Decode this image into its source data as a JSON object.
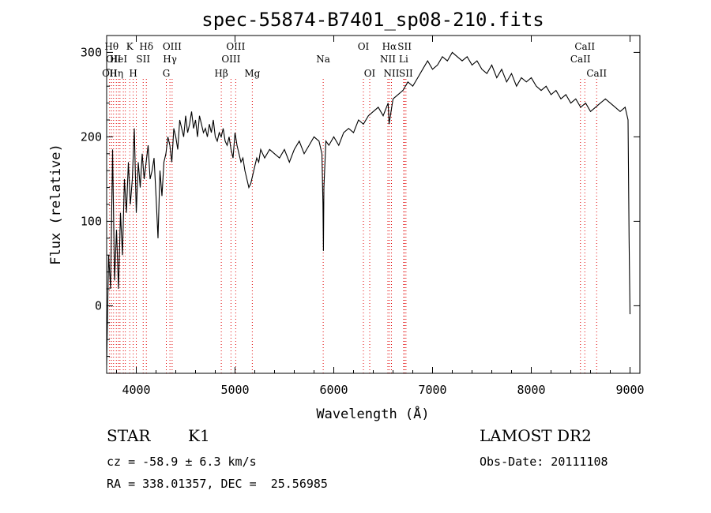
{
  "chart_data": {
    "type": "line",
    "title": "spec-55874-B7401_sp08-210.fits",
    "xlabel": "Wavelength (Å)",
    "ylabel": "Flux (relative)",
    "xlim": [
      3700,
      9100
    ],
    "ylim": [
      -80,
      320
    ],
    "xticks": [
      4000,
      5000,
      6000,
      7000,
      8000,
      9000
    ],
    "yticks": [
      0,
      100,
      200,
      300
    ],
    "grid": false,
    "line_color": "#000000",
    "marker_color": "#e00000",
    "series": [
      {
        "x": [
          3700,
          3720,
          3740,
          3760,
          3780,
          3800,
          3820,
          3840,
          3860,
          3880,
          3900,
          3920,
          3940,
          3960,
          3980,
          4000,
          4020,
          4040,
          4060,
          4080,
          4100,
          4120,
          4140,
          4160,
          4180,
          4200,
          4220,
          4240,
          4260,
          4280,
          4300,
          4320,
          4340,
          4360,
          4380,
          4400,
          4420,
          4440,
          4460,
          4480,
          4500,
          4520,
          4540,
          4560,
          4580,
          4600,
          4620,
          4640,
          4660,
          4680,
          4700,
          4720,
          4740,
          4760,
          4780,
          4800,
          4820,
          4840,
          4860,
          4880,
          4900,
          4920,
          4940,
          4960,
          4980,
          5000,
          5020,
          5040,
          5060,
          5080,
          5100,
          5120,
          5140,
          5160,
          5180,
          5200,
          5220,
          5240,
          5260,
          5280,
          5300,
          5350,
          5400,
          5450,
          5500,
          5550,
          5600,
          5650,
          5700,
          5750,
          5800,
          5850,
          5880,
          5890,
          5895,
          5900,
          5920,
          5950,
          6000,
          6050,
          6100,
          6150,
          6200,
          6250,
          6300,
          6350,
          6400,
          6450,
          6500,
          6550,
          6560,
          6600,
          6650,
          6700,
          6750,
          6800,
          6850,
          6900,
          6950,
          7000,
          7050,
          7100,
          7150,
          7200,
          7250,
          7300,
          7350,
          7400,
          7450,
          7500,
          7550,
          7600,
          7650,
          7700,
          7750,
          7800,
          7850,
          7900,
          7950,
          8000,
          8050,
          8100,
          8150,
          8200,
          8250,
          8300,
          8350,
          8400,
          8450,
          8500,
          8550,
          8600,
          8650,
          8700,
          8750,
          8800,
          8850,
          8900,
          8950,
          8980,
          8990,
          9000
        ],
        "y": [
          -70,
          60,
          20,
          185,
          30,
          90,
          20,
          110,
          60,
          150,
          110,
          170,
          120,
          150,
          210,
          110,
          170,
          140,
          180,
          150,
          170,
          190,
          150,
          160,
          175,
          130,
          80,
          160,
          130,
          170,
          180,
          200,
          190,
          170,
          210,
          200,
          185,
          220,
          210,
          200,
          225,
          205,
          215,
          230,
          210,
          220,
          200,
          225,
          215,
          205,
          210,
          200,
          215,
          205,
          220,
          200,
          195,
          205,
          200,
          210,
          195,
          190,
          200,
          185,
          175,
          205,
          190,
          180,
          170,
          175,
          160,
          150,
          140,
          145,
          155,
          165,
          175,
          170,
          185,
          180,
          175,
          185,
          180,
          175,
          185,
          170,
          185,
          195,
          180,
          190,
          200,
          195,
          180,
          120,
          65,
          140,
          195,
          190,
          200,
          190,
          205,
          210,
          205,
          220,
          215,
          225,
          230,
          235,
          225,
          240,
          215,
          245,
          250,
          255,
          265,
          260,
          270,
          280,
          290,
          280,
          285,
          295,
          290,
          300,
          295,
          290,
          295,
          285,
          290,
          280,
          275,
          285,
          270,
          280,
          265,
          275,
          260,
          270,
          265,
          270,
          260,
          255,
          260,
          250,
          255,
          245,
          250,
          240,
          245,
          235,
          240,
          230,
          235,
          240,
          245,
          240,
          235,
          230,
          235,
          220,
          80,
          -10
        ]
      }
    ],
    "line_markers": [
      {
        "wl": 3730,
        "label": "OII",
        "row": 3
      },
      {
        "wl": 3750,
        "label": "Hθ",
        "row": 1
      },
      {
        "wl": 3770,
        "label": "OII",
        "row": 2
      },
      {
        "wl": 3798,
        "label": "Hη",
        "row": 3
      },
      {
        "wl": 3820,
        "label": "HeI",
        "row": 2
      },
      {
        "wl": 3835,
        "label": "",
        "row": 0
      },
      {
        "wl": 3869,
        "label": "",
        "row": 0
      },
      {
        "wl": 3889,
        "label": "",
        "row": 0
      },
      {
        "wl": 3934,
        "label": "K",
        "row": 1
      },
      {
        "wl": 3969,
        "label": "H",
        "row": 3
      },
      {
        "wl": 4000,
        "label": "",
        "row": 0
      },
      {
        "wl": 4070,
        "label": "SII",
        "row": 2
      },
      {
        "wl": 4102,
        "label": "Hδ",
        "row": 1
      },
      {
        "wl": 4304,
        "label": "G",
        "row": 3
      },
      {
        "wl": 4341,
        "label": "Hγ",
        "row": 2
      },
      {
        "wl": 4363,
        "label": "OIII",
        "row": 1
      },
      {
        "wl": 4861,
        "label": "Hβ",
        "row": 3
      },
      {
        "wl": 4959,
        "label": "OIII",
        "row": 2
      },
      {
        "wl": 5007,
        "label": "OIII",
        "row": 1
      },
      {
        "wl": 5175,
        "label": "Mg",
        "row": 3
      },
      {
        "wl": 5893,
        "label": "Na",
        "row": 2
      },
      {
        "wl": 6300,
        "label": "OI",
        "row": 1
      },
      {
        "wl": 6364,
        "label": "OI",
        "row": 3
      },
      {
        "wl": 6548,
        "label": "NII",
        "row": 2
      },
      {
        "wl": 6563,
        "label": "Hα",
        "row": 1
      },
      {
        "wl": 6584,
        "label": "NII",
        "row": 3
      },
      {
        "wl": 6707,
        "label": "Li",
        "row": 2
      },
      {
        "wl": 6717,
        "label": "SII",
        "row": 1
      },
      {
        "wl": 6731,
        "label": "SII",
        "row": 3
      },
      {
        "wl": 8498,
        "label": "CaII",
        "row": 2
      },
      {
        "wl": 8542,
        "label": "CaII",
        "row": 1
      },
      {
        "wl": 8662,
        "label": "CaII",
        "row": 3
      }
    ]
  },
  "footer": {
    "class_label": "STAR",
    "subclass": "K1",
    "cz": "cz = -58.9 ± 6.3 km/s",
    "radec": "RA = 338.01357, DEC =  25.56985",
    "survey": "LAMOST DR2",
    "obs_date": "Obs-Date: 20111108"
  }
}
